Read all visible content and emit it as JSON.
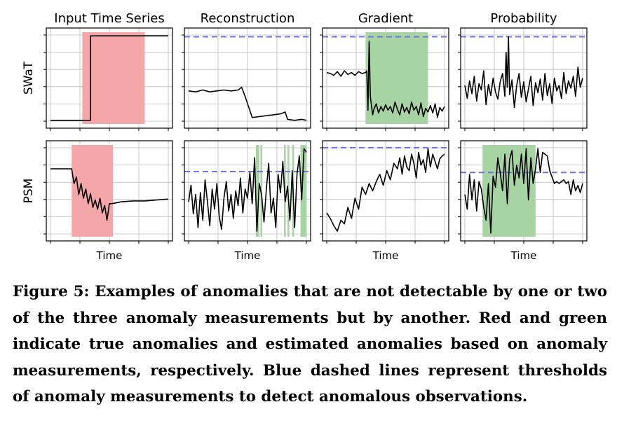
{
  "figure": {
    "caption": "Figure 5: Examples of anomalies that are not detectable by one or two of the three anomaly measurements but by another. Red and green indicate true anomalies and estimated anomalies based on anomaly measurements, respectively. Blue dashed lines represent thresholds of anomaly measurements to detect anomalous observations."
  },
  "colors": {
    "series": "#000000",
    "true_anomaly": "#f4a6a8",
    "estimated_anomaly": "#a7d4a3",
    "threshold": "#6f74e0",
    "grid": "#bdbdbd"
  },
  "chart_data": [
    {
      "type": "line",
      "row": "SWaT",
      "title": "Input Time Series",
      "ylabel": "SWaT",
      "xlabel": "",
      "xlim": [
        0,
        100
      ],
      "ylim": [
        0,
        1
      ],
      "grid": true,
      "series": [
        {
          "x": [
            0,
            34,
            34,
            100
          ],
          "y": [
            0.04,
            0.04,
            0.96,
            0.96
          ]
        }
      ],
      "true_anomaly": [
        [
          27,
          80
        ]
      ],
      "estimated_anomaly": [],
      "threshold": null
    },
    {
      "type": "line",
      "row": "SWaT",
      "title": "Reconstruction",
      "xlabel": "",
      "xlim": [
        0,
        100
      ],
      "ylim": [
        0,
        1
      ],
      "grid": true,
      "series": [
        {
          "x": [
            0,
            6,
            12,
            18,
            24,
            30,
            36,
            42,
            45,
            48,
            54,
            60,
            66,
            72,
            78,
            82,
            84,
            90,
            96,
            100
          ],
          "y": [
            0.36,
            0.35,
            0.37,
            0.35,
            0.36,
            0.37,
            0.36,
            0.37,
            0.4,
            0.3,
            0.07,
            0.08,
            0.09,
            0.1,
            0.11,
            0.13,
            0.05,
            0.04,
            0.05,
            0.04
          ]
        }
      ],
      "true_anomaly": [],
      "estimated_anomaly": [],
      "threshold": 0.95
    },
    {
      "type": "line",
      "row": "SWaT",
      "title": "Gradient",
      "xlabel": "",
      "xlim": [
        0,
        100
      ],
      "ylim": [
        0,
        1
      ],
      "grid": true,
      "series": [
        {
          "x": [
            0,
            3,
            6,
            9,
            12,
            15,
            18,
            21,
            24,
            27,
            30,
            33,
            34,
            35,
            36,
            37,
            38,
            39,
            40,
            42,
            44,
            46,
            48,
            50,
            52,
            54,
            56,
            58,
            60,
            62,
            64,
            66,
            68,
            70,
            72,
            74,
            76,
            78,
            80,
            82,
            84,
            86,
            88,
            90,
            92,
            94,
            96,
            98,
            100
          ],
          "y": [
            0.56,
            0.55,
            0.53,
            0.57,
            0.52,
            0.58,
            0.54,
            0.56,
            0.53,
            0.57,
            0.55,
            0.56,
            0.58,
            0.15,
            0.9,
            0.3,
            0.2,
            0.1,
            0.16,
            0.22,
            0.12,
            0.19,
            0.14,
            0.21,
            0.15,
            0.19,
            0.12,
            0.24,
            0.16,
            0.1,
            0.22,
            0.13,
            0.18,
            0.11,
            0.24,
            0.15,
            0.19,
            0.1,
            0.23,
            0.08,
            0.17,
            0.13,
            0.2,
            0.12,
            0.22,
            0.07,
            0.18,
            0.14,
            0.19
          ]
        }
      ],
      "true_anomaly": [],
      "estimated_anomaly": [
        [
          33,
          86
        ]
      ],
      "threshold": 0.95
    },
    {
      "type": "line",
      "row": "SWaT",
      "title": "Probability",
      "xlabel": "",
      "xlim": [
        0,
        100
      ],
      "ylim": [
        0,
        1
      ],
      "grid": true,
      "series": [
        {
          "x": [
            0,
            2,
            4,
            6,
            8,
            10,
            12,
            14,
            16,
            18,
            20,
            22,
            24,
            26,
            28,
            30,
            32,
            34,
            35,
            36,
            37,
            38,
            40,
            42,
            44,
            46,
            48,
            50,
            52,
            54,
            56,
            58,
            60,
            62,
            64,
            66,
            68,
            70,
            72,
            74,
            76,
            78,
            80,
            82,
            84,
            86,
            88,
            90,
            92,
            94,
            96,
            98,
            100
          ],
          "y": [
            0.42,
            0.28,
            0.47,
            0.33,
            0.52,
            0.25,
            0.44,
            0.37,
            0.58,
            0.21,
            0.43,
            0.31,
            0.5,
            0.35,
            0.27,
            0.46,
            0.55,
            0.3,
            0.78,
            0.4,
            0.95,
            0.32,
            0.48,
            0.18,
            0.42,
            0.55,
            0.29,
            0.46,
            0.24,
            0.38,
            0.52,
            0.2,
            0.45,
            0.34,
            0.49,
            0.26,
            0.55,
            0.31,
            0.44,
            0.22,
            0.5,
            0.36,
            0.42,
            0.28,
            0.56,
            0.33,
            0.47,
            0.39,
            0.52,
            0.3,
            0.62,
            0.4,
            0.5
          ]
        }
      ],
      "true_anomaly": [],
      "estimated_anomaly": [],
      "threshold": 0.95
    },
    {
      "type": "line",
      "row": "PSM",
      "title": "",
      "ylabel": "PSM",
      "xlabel": "Time",
      "xlim": [
        0,
        100
      ],
      "ylim": [
        0,
        1
      ],
      "grid": true,
      "series": [
        {
          "x": [
            0,
            18,
            20,
            22,
            24,
            26,
            28,
            30,
            32,
            34,
            36,
            38,
            40,
            42,
            44,
            46,
            48,
            50,
            52,
            60,
            70,
            80,
            90,
            100
          ],
          "y": [
            0.74,
            0.74,
            0.58,
            0.65,
            0.46,
            0.58,
            0.42,
            0.52,
            0.36,
            0.47,
            0.32,
            0.4,
            0.3,
            0.42,
            0.26,
            0.34,
            0.18,
            0.36,
            0.36,
            0.38,
            0.39,
            0.39,
            0.4,
            0.41
          ]
        }
      ],
      "true_anomaly": [
        [
          18,
          53
        ]
      ],
      "estimated_anomaly": [],
      "threshold": null
    },
    {
      "type": "line",
      "row": "PSM",
      "title": "",
      "xlabel": "Time",
      "xlim": [
        0,
        100
      ],
      "ylim": [
        0,
        1
      ],
      "grid": true,
      "series": [
        {
          "x": [
            0,
            2,
            4,
            6,
            8,
            10,
            12,
            14,
            16,
            18,
            20,
            22,
            24,
            26,
            28,
            30,
            32,
            34,
            36,
            38,
            40,
            42,
            44,
            46,
            48,
            50,
            52,
            54,
            56,
            58,
            60,
            62,
            64,
            66,
            68,
            70,
            72,
            74,
            76,
            78,
            80,
            82,
            84,
            86,
            88,
            90,
            92,
            94,
            96,
            98,
            100
          ],
          "y": [
            0.38,
            0.56,
            0.25,
            0.46,
            0.1,
            0.48,
            0.18,
            0.62,
            0.38,
            0.12,
            0.52,
            0.3,
            0.58,
            0.22,
            0.08,
            0.42,
            0.6,
            0.28,
            0.46,
            0.2,
            0.5,
            0.34,
            0.64,
            0.26,
            0.52,
            0.42,
            0.7,
            0.36,
            0.86,
            0.06,
            0.58,
            0.45,
            0.16,
            0.52,
            0.8,
            0.26,
            0.42,
            0.1,
            0.68,
            0.48,
            0.82,
            0.38,
            0.55,
            0.18,
            0.72,
            0.1,
            0.68,
            0.88,
            0.4,
            0.96,
            0.92
          ]
        }
      ],
      "true_anomaly": [],
      "estimated_anomaly": [
        [
          57,
          60
        ],
        [
          61,
          62.5
        ],
        [
          81,
          82.5
        ],
        [
          84,
          85.5
        ],
        [
          88,
          89.5
        ],
        [
          95,
          100
        ]
      ],
      "threshold": 0.71
    },
    {
      "type": "line",
      "row": "PSM",
      "title": "",
      "xlabel": "Time",
      "xlim": [
        0,
        100
      ],
      "ylim": [
        0,
        1
      ],
      "grid": true,
      "series": [
        {
          "x": [
            0,
            3,
            6,
            9,
            12,
            15,
            18,
            21,
            24,
            27,
            30,
            33,
            36,
            39,
            42,
            45,
            48,
            51,
            54,
            57,
            60,
            62,
            64,
            66,
            68,
            70,
            72,
            74,
            76,
            78,
            80,
            82,
            84,
            86,
            88,
            90,
            92,
            94,
            96,
            98,
            100
          ],
          "y": [
            0.26,
            0.2,
            0.12,
            0.06,
            0.18,
            0.14,
            0.32,
            0.2,
            0.42,
            0.3,
            0.54,
            0.46,
            0.58,
            0.5,
            0.6,
            0.68,
            0.56,
            0.72,
            0.62,
            0.8,
            0.74,
            0.86,
            0.68,
            0.88,
            0.76,
            0.72,
            0.9,
            0.8,
            0.64,
            0.92,
            0.78,
            0.84,
            0.7,
            0.96,
            0.76,
            0.9,
            0.82,
            0.74,
            0.85,
            0.88,
            0.9
          ]
        }
      ],
      "true_anomaly": [],
      "estimated_anomaly": [],
      "threshold": 0.97
    },
    {
      "type": "line",
      "row": "PSM",
      "title": "",
      "xlabel": "Time",
      "xlim": [
        0,
        100
      ],
      "ylim": [
        0,
        1
      ],
      "grid": true,
      "series": [
        {
          "x": [
            0,
            2,
            4,
            6,
            8,
            10,
            12,
            14,
            16,
            18,
            20,
            22,
            24,
            26,
            28,
            30,
            32,
            34,
            36,
            38,
            40,
            42,
            44,
            46,
            48,
            50,
            52,
            54,
            56,
            58,
            60,
            62,
            64,
            66,
            70,
            72,
            76,
            78,
            80,
            84,
            86,
            88,
            90,
            92,
            94,
            96,
            98,
            100
          ],
          "y": [
            0.46,
            0.3,
            0.68,
            0.4,
            0.62,
            0.28,
            0.6,
            0.52,
            0.32,
            0.18,
            0.58,
            0.04,
            0.66,
            0.54,
            0.86,
            0.7,
            0.5,
            0.9,
            0.36,
            0.84,
            0.94,
            0.56,
            0.78,
            0.64,
            0.9,
            0.58,
            0.96,
            0.4,
            0.86,
            0.58,
            0.74,
            0.96,
            0.7,
            0.92,
            0.88,
            0.72,
            0.58,
            0.6,
            0.58,
            0.62,
            0.58,
            0.6,
            0.46,
            0.62,
            0.5,
            0.56,
            0.48,
            0.58
          ]
        }
      ],
      "true_anomaly": [],
      "estimated_anomaly": [
        [
          15,
          60
        ]
      ],
      "threshold": 0.7
    }
  ]
}
